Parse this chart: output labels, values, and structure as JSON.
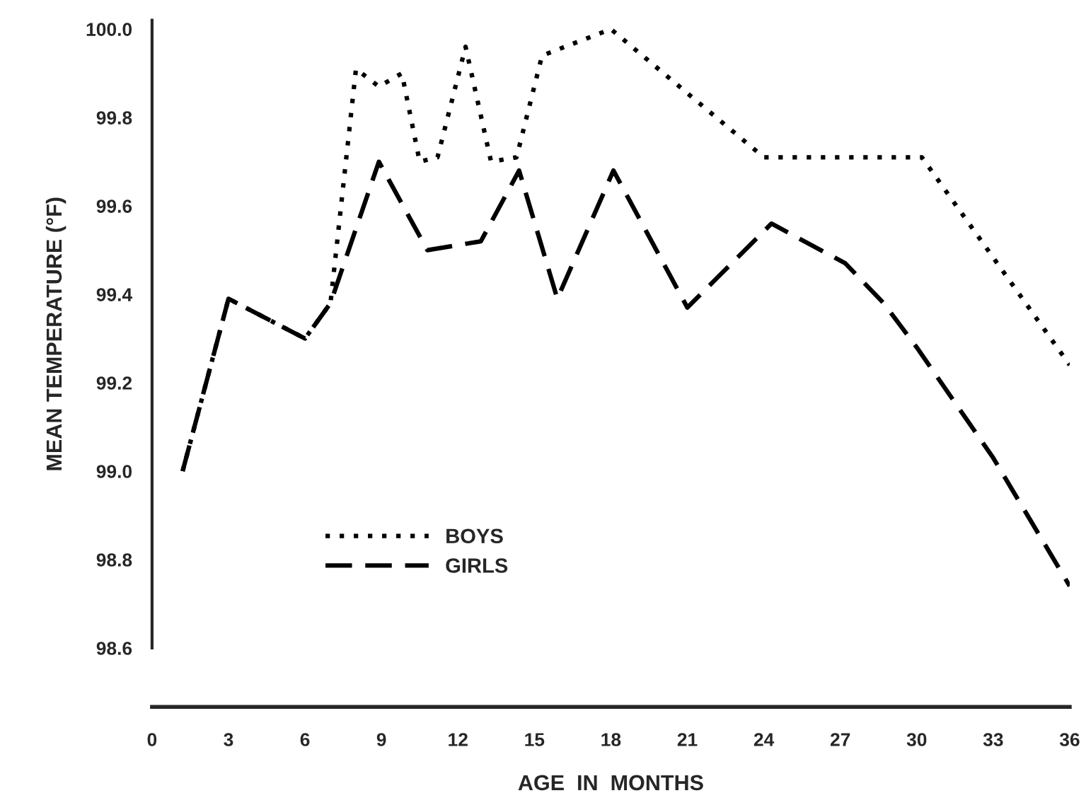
{
  "chart_data": {
    "type": "line",
    "xlabel": "AGE  IN  MONTHS",
    "ylabel": "MEAN TEMPERATURE (°F)",
    "xlim": [
      0,
      36
    ],
    "xticks": [
      0,
      3,
      6,
      9,
      12,
      15,
      18,
      21,
      24,
      27,
      30,
      33,
      36
    ],
    "ylim": [
      98.6,
      100.02
    ],
    "yticks": [
      {
        "value": 98.6,
        "label": "98.6"
      },
      {
        "value": 98.8,
        "label": "98.8"
      },
      {
        "value": 99.0,
        "label": "99.0"
      },
      {
        "value": 99.2,
        "label": "99.2"
      },
      {
        "value": 99.4,
        "label": "99.4"
      },
      {
        "value": 99.6,
        "label": "99.6"
      },
      {
        "value": 99.8,
        "label": "99.8"
      },
      {
        "value": 100.0,
        "label": "100.0"
      }
    ],
    "grid": false,
    "legend": "lower left",
    "series": [
      {
        "name": "BOYS",
        "color": "#000000",
        "line_style": "dotted",
        "x": [
          1.2,
          3,
          6,
          7,
          8,
          8.9,
          9.8,
          10.5,
          11.2,
          12.3,
          13.3,
          14.3,
          15.3,
          18,
          24,
          30.2,
          36
        ],
        "values": [
          99.0,
          99.39,
          99.3,
          99.38,
          99.91,
          99.87,
          99.9,
          99.7,
          99.71,
          99.96,
          99.7,
          99.71,
          99.94,
          100.0,
          99.71,
          99.71,
          99.24
        ]
      },
      {
        "name": "GIRLS",
        "color": "#000000",
        "line_style": "dashed",
        "x": [
          1.2,
          3,
          6,
          7,
          8.9,
          10.8,
          12.9,
          14.4,
          15.9,
          18.1,
          21,
          24.3,
          27.2,
          28.7,
          30,
          33,
          36
        ],
        "values": [
          99.0,
          99.39,
          99.3,
          99.38,
          99.7,
          99.5,
          99.52,
          99.68,
          99.39,
          99.68,
          99.37,
          99.56,
          99.47,
          99.38,
          99.28,
          99.03,
          98.74
        ]
      }
    ]
  }
}
